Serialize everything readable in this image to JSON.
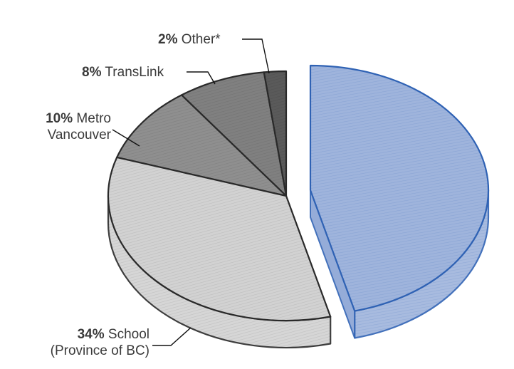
{
  "chart_data": {
    "type": "pie",
    "slices": [
      {
        "pct": "2%",
        "name": "Other*",
        "value": 2,
        "color": "#5a5a5a"
      },
      {
        "pct": "8%",
        "name": "TransLink",
        "value": 8,
        "color": "#808080"
      },
      {
        "pct": "10%",
        "name": "Metro Vancouver",
        "value": 10,
        "color": "#8f8f8f"
      },
      {
        "pct": "34%",
        "name": "School (Province of BC)",
        "value": 34,
        "color": "#d2d2d2"
      },
      {
        "pct": "",
        "name": "",
        "value": 46,
        "color": "#9fb4dc"
      }
    ]
  },
  "labels": {
    "other": {
      "pct": "2%",
      "text": "Other*"
    },
    "translink": {
      "pct": "8%",
      "text": "TransLink"
    },
    "metro": {
      "pct": "10%",
      "line1": "Metro",
      "line2": "Vancouver"
    },
    "school": {
      "pct": "34%",
      "line1": "School",
      "line2": "(Province of BC)"
    }
  }
}
